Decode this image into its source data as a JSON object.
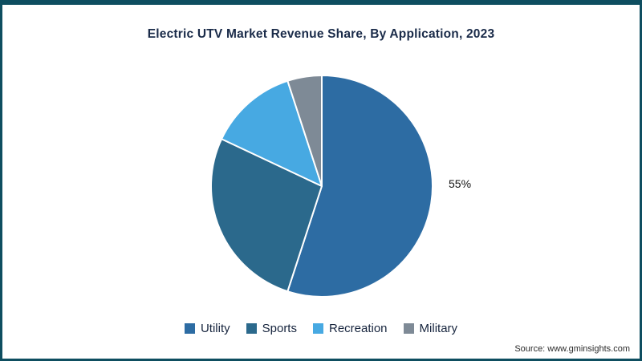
{
  "frame": {
    "border_color": "#0e4e60",
    "background_color": "#ffffff"
  },
  "source_note": "Source: www.gminsights.com",
  "chart_data": {
    "type": "pie",
    "title": "Electric UTV Market Revenue Share, By Application, 2023",
    "start_angle_deg": 0,
    "direction": "clockwise",
    "legend_position": "bottom",
    "slices": [
      {
        "name": "Utility",
        "value": 55,
        "color": "#2d6ca3",
        "label": "55%"
      },
      {
        "name": "Sports",
        "value": 27,
        "color": "#2b698c",
        "label": ""
      },
      {
        "name": "Recreation",
        "value": 13,
        "color": "#47a9e2",
        "label": ""
      },
      {
        "name": "Military",
        "value": 5,
        "color": "#7e8a96",
        "label": ""
      }
    ]
  }
}
